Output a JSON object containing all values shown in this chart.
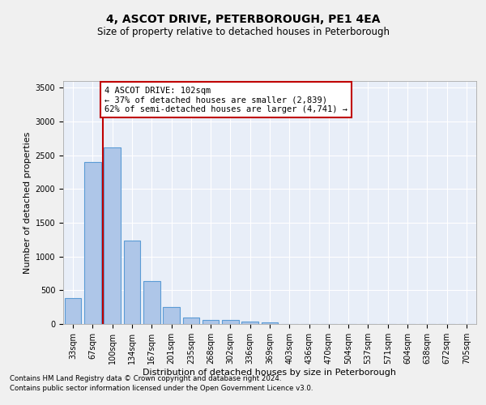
{
  "title": "4, ASCOT DRIVE, PETERBOROUGH, PE1 4EA",
  "subtitle": "Size of property relative to detached houses in Peterborough",
  "xlabel": "Distribution of detached houses by size in Peterborough",
  "ylabel": "Number of detached properties",
  "footnote1": "Contains HM Land Registry data © Crown copyright and database right 2024.",
  "footnote2": "Contains public sector information licensed under the Open Government Licence v3.0.",
  "categories": [
    "33sqm",
    "67sqm",
    "100sqm",
    "134sqm",
    "167sqm",
    "201sqm",
    "235sqm",
    "268sqm",
    "302sqm",
    "336sqm",
    "369sqm",
    "403sqm",
    "436sqm",
    "470sqm",
    "504sqm",
    "537sqm",
    "571sqm",
    "604sqm",
    "638sqm",
    "672sqm",
    "705sqm"
  ],
  "values": [
    390,
    2400,
    2620,
    1240,
    640,
    255,
    95,
    60,
    55,
    40,
    30,
    0,
    0,
    0,
    0,
    0,
    0,
    0,
    0,
    0,
    0
  ],
  "bar_color": "#aec6e8",
  "bar_edge_color": "#5b9bd5",
  "annotation_line_color": "#c00000",
  "annotation_box_color": "#c00000",
  "property_bin_index": 2,
  "annotation_text_line1": "4 ASCOT DRIVE: 102sqm",
  "annotation_text_line2": "← 37% of detached houses are smaller (2,839)",
  "annotation_text_line3": "62% of semi-detached houses are larger (4,741) →",
  "ylim": [
    0,
    3600
  ],
  "yticks": [
    0,
    500,
    1000,
    1500,
    2000,
    2500,
    3000,
    3500
  ],
  "background_color": "#e8eef8",
  "grid_color": "#ffffff",
  "fig_background": "#f0f0f0",
  "title_fontsize": 10,
  "subtitle_fontsize": 8.5,
  "ylabel_fontsize": 8,
  "xlabel_fontsize": 8,
  "tick_fontsize": 7,
  "annotation_fontsize": 7.5,
  "footnote_fontsize": 6.2
}
